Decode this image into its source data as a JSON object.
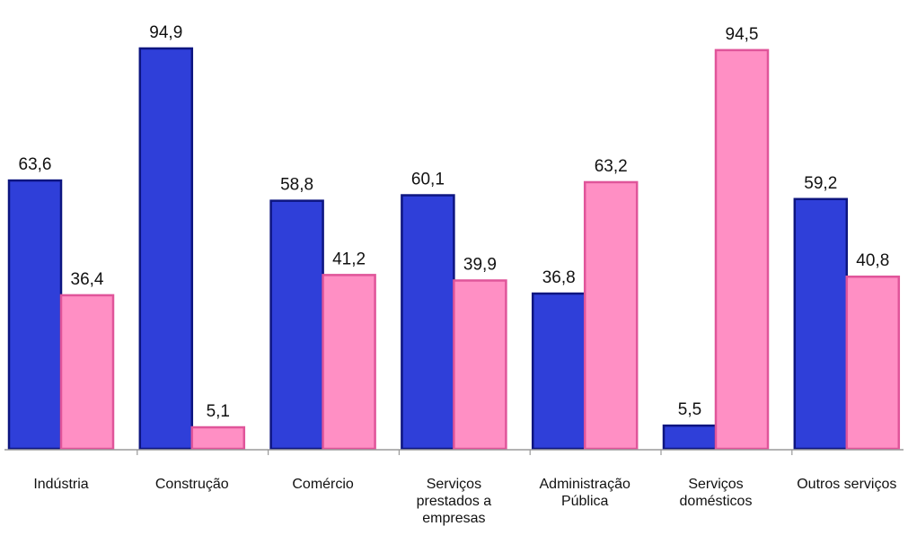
{
  "chart_data": {
    "type": "bar",
    "categories": [
      [
        "Indústria"
      ],
      [
        "Construção"
      ],
      [
        "Comércio"
      ],
      [
        "Serviços",
        "prestados a",
        "empresas"
      ],
      [
        "Administração",
        "Pública"
      ],
      [
        "Serviços",
        "domésticos"
      ],
      [
        "Outros serviços"
      ]
    ],
    "series": [
      {
        "values": [
          63.6,
          94.9,
          58.8,
          60.1,
          36.8,
          5.5,
          59.2
        ],
        "labels": [
          "63,6",
          "94,9",
          "58,8",
          "60,1",
          "36,8",
          "5,5",
          "59,2"
        ],
        "color": "#2f3fd9",
        "stroke": "#0d1580"
      },
      {
        "values": [
          36.4,
          5.1,
          41.2,
          39.9,
          63.2,
          94.5,
          40.8
        ],
        "labels": [
          "36,4",
          "5,1",
          "41,2",
          "39,9",
          "63,2",
          "94,5",
          "40,8"
        ],
        "color": "#ff8fc4",
        "stroke": "#e0559a"
      }
    ],
    "ylim": [
      0,
      100
    ],
    "grid": false,
    "legend": "none"
  }
}
